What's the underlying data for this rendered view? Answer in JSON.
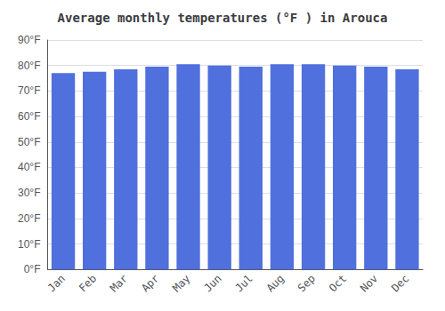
{
  "chart_data": {
    "type": "bar",
    "title": "Average monthly temperatures (°F ) in Arouca",
    "categories": [
      "Jan",
      "Feb",
      "Mar",
      "Apr",
      "May",
      "Jun",
      "Jul",
      "Aug",
      "Sep",
      "Oct",
      "Nov",
      "Dec"
    ],
    "values": [
      77,
      77.5,
      78.5,
      79.5,
      80.5,
      80,
      79.5,
      80.5,
      80.5,
      80,
      79.5,
      78.5
    ],
    "ylim": [
      0,
      90
    ],
    "yticks": [
      {
        "value": 0,
        "label": "0°F"
      },
      {
        "value": 10,
        "label": "10°F"
      },
      {
        "value": 20,
        "label": "20°F"
      },
      {
        "value": 30,
        "label": "30°F"
      },
      {
        "value": 40,
        "label": "40°F"
      },
      {
        "value": 50,
        "label": "50°F"
      },
      {
        "value": 60,
        "label": "60°F"
      },
      {
        "value": 70,
        "label": "70°F"
      },
      {
        "value": 80,
        "label": "80°F"
      },
      {
        "value": 90,
        "label": "90°F"
      }
    ],
    "grid": true
  }
}
